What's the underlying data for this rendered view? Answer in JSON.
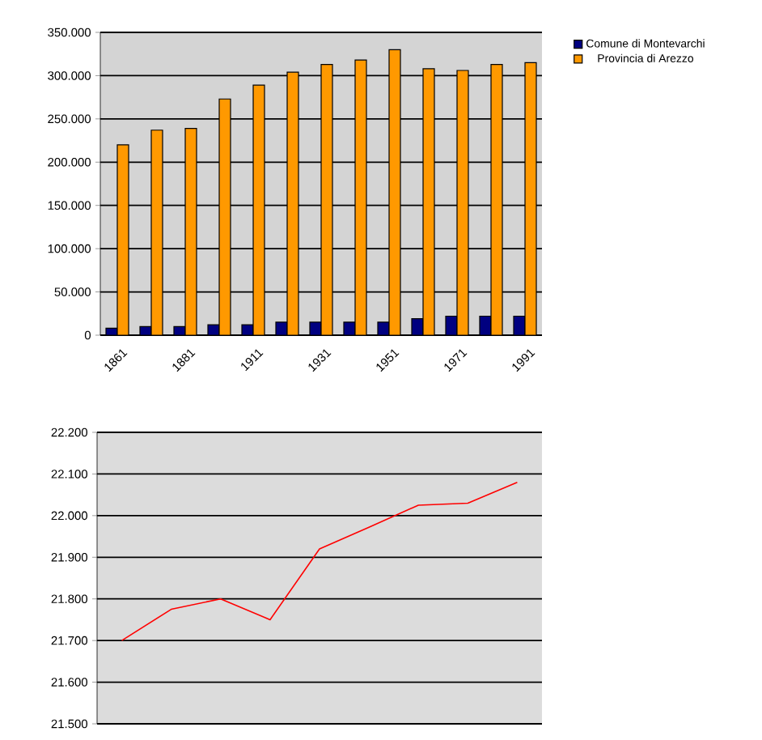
{
  "chart_data": [
    {
      "type": "bar",
      "categories": [
        "1861",
        null,
        "1881",
        null,
        "1911",
        null,
        "1931",
        null,
        "1951",
        null,
        "1971",
        null,
        "1991"
      ],
      "series": [
        {
          "name": "Comune di Montevarchi",
          "color": "#000080",
          "values": [
            8000,
            10000,
            10000,
            12000,
            12000,
            15000,
            15000,
            15000,
            15000,
            19000,
            22000,
            22000,
            22000
          ]
        },
        {
          "name": "Provincia di Arezzo",
          "color": "#ff9900",
          "values": [
            220000,
            237000,
            239000,
            273000,
            289000,
            304000,
            313000,
            318000,
            330000,
            308000,
            306000,
            313000,
            315000
          ]
        }
      ],
      "ylim": [
        0,
        350000
      ],
      "yticks": [
        {
          "value": 0,
          "label": "0"
        },
        {
          "value": 50000,
          "label": "50.000"
        },
        {
          "value": 100000,
          "label": "100.000"
        },
        {
          "value": 150000,
          "label": "150.000"
        },
        {
          "value": 200000,
          "label": "200.000"
        },
        {
          "value": 250000,
          "label": "250.000"
        },
        {
          "value": 300000,
          "label": "300.000"
        },
        {
          "value": 350000,
          "label": "350.000"
        }
      ],
      "grid": "y",
      "legend": "top right"
    },
    {
      "type": "line",
      "categories": [
        null,
        null,
        null,
        null,
        null,
        null,
        null,
        null,
        null
      ],
      "series": [
        {
          "color": "#ff0000",
          "values": [
            21700,
            21775,
            21800,
            21750,
            21920,
            21972,
            22025,
            22030,
            22080
          ]
        }
      ],
      "ylim": [
        21500,
        22200
      ],
      "yticks": [
        {
          "value": 21500,
          "label": "21.500"
        },
        {
          "value": 21600,
          "label": "21.600"
        },
        {
          "value": 21700,
          "label": "21.700"
        },
        {
          "value": 21800,
          "label": "21.800"
        },
        {
          "value": 21900,
          "label": "21.900"
        },
        {
          "value": 22000,
          "label": "22.000"
        },
        {
          "value": 22100,
          "label": "22.100"
        },
        {
          "value": 22200,
          "label": "22.200"
        }
      ],
      "grid": "y",
      "marker": "none",
      "line_style": "solid"
    }
  ]
}
